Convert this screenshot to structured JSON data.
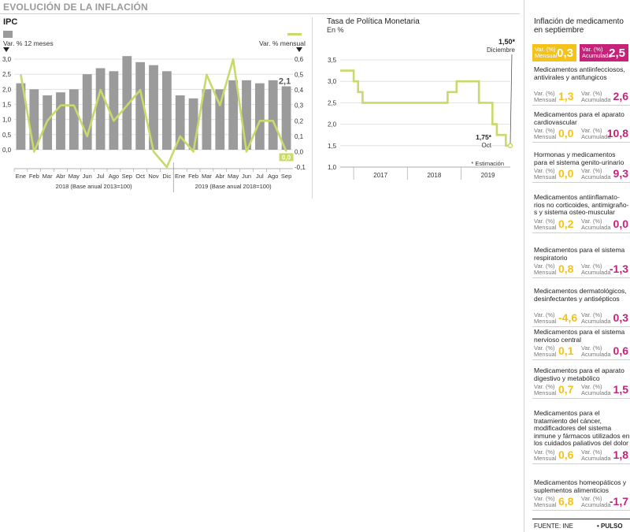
{
  "main_title": "EVOLUCIÓN DE LA INFLACIÓN",
  "ipc": {
    "title": "IPC",
    "legend_bars": "Var. % 12 meses",
    "legend_line": "Var. % mensual",
    "last_bar_label": "2,1",
    "last_line_label": "0,0",
    "period1": "2018 (Base anual 2013=100)",
    "period2": "2019 (Base anual 2018=100)"
  },
  "tpm": {
    "title": "Tasa de Política Monetaria",
    "subtitle": "En %",
    "ann_top_value": "1,50*",
    "ann_top_label": "Diciembre",
    "ann_bot_value": "1,75*",
    "ann_bot_label": "Oct",
    "footnote": "* Estimación"
  },
  "chart_data": [
    {
      "type": "bar",
      "title": "IPC",
      "categories": [
        "Ene",
        "Feb",
        "Mar",
        "Abr",
        "May",
        "Jun",
        "Jul",
        "Ago",
        "Sep",
        "Oct",
        "Nov",
        "Dic",
        "Ene",
        "Feb",
        "Mar",
        "Abr",
        "May",
        "Jun",
        "Jul",
        "Ago",
        "Sep"
      ],
      "series": [
        {
          "name": "Var. % 12 meses",
          "axis": "left",
          "color": "#9b9b9b",
          "values": [
            2.2,
            2.0,
            1.8,
            1.9,
            2.0,
            2.5,
            2.7,
            2.6,
            3.1,
            2.9,
            2.8,
            2.6,
            1.8,
            1.7,
            2.0,
            2.0,
            2.3,
            2.3,
            2.2,
            2.3,
            2.1
          ]
        },
        {
          "name": "Var. % mensual",
          "axis": "right",
          "type": "line",
          "color": "#c9d96a",
          "values": [
            0.5,
            0.0,
            0.2,
            0.3,
            0.3,
            0.1,
            0.4,
            0.2,
            0.3,
            0.4,
            0.0,
            -0.1,
            0.1,
            0.0,
            0.5,
            0.3,
            0.6,
            0.0,
            0.2,
            0.2,
            0.0
          ]
        }
      ],
      "y_left": {
        "ticks": [
          "3,0",
          "2,5",
          "2,0",
          "1,5",
          "1,0",
          "0,5",
          "0,0"
        ],
        "ylim": [
          0,
          3.0
        ]
      },
      "y_right": {
        "ticks": [
          "0,6",
          "0,5",
          "0,4",
          "0,3",
          "0,2",
          "0,1",
          "0,0",
          "-0,1"
        ],
        "ylim": [
          -0.1,
          0.6
        ]
      },
      "grid": true
    },
    {
      "type": "line",
      "title": "Tasa de Política Monetaria",
      "ylabel": "En %",
      "y_ticks": [
        "3,5",
        "3,0",
        "2,5",
        "2,0",
        "1,5",
        "1,0"
      ],
      "ylim": [
        1.0,
        3.5
      ],
      "x_ticks": [
        "2017",
        "2018",
        "2019"
      ],
      "step": true,
      "color": "#c9d96a",
      "points": [
        [
          "2016-10",
          3.25
        ],
        [
          "2017-01",
          3.25
        ],
        [
          "2017-01",
          3.0
        ],
        [
          "2017-02",
          3.0
        ],
        [
          "2017-02",
          2.75
        ],
        [
          "2017-03",
          2.75
        ],
        [
          "2017-03",
          2.5
        ],
        [
          "2018-10",
          2.5
        ],
        [
          "2018-10",
          2.75
        ],
        [
          "2018-12",
          2.75
        ],
        [
          "2018-12",
          3.0
        ],
        [
          "2019-05",
          3.0
        ],
        [
          "2019-05",
          2.5
        ],
        [
          "2019-08",
          2.5
        ],
        [
          "2019-08",
          2.0
        ],
        [
          "2019-09",
          2.0
        ],
        [
          "2019-09",
          1.75
        ],
        [
          "2019-11",
          1.75
        ],
        [
          "2019-11",
          1.5
        ],
        [
          "2019-12",
          1.5
        ]
      ],
      "grid": true
    }
  ],
  "right": {
    "title": "Inflación de medicamento en septiembre",
    "box_mensual_label": "Var. (%) Mensual",
    "box_mensual_value": "0,3",
    "box_acumulada_label": "Var. (%) Acumulada",
    "box_acumulada_value": "2,5",
    "sub_mensual": "Var. (%) Mensual",
    "sub_acumulada": "Var. (%) Acumulada",
    "items": [
      {
        "name": "Medicamentos antiinfecciosos, antivirales y antifungicos",
        "mensual": "1,3",
        "acumulada": "2,6"
      },
      {
        "name": "Medicamentos para el aparato cardiovascular",
        "mensual": "0,0",
        "acumulada": "10,8"
      },
      {
        "name": "Hormonas y medicamentos para el sistema genito-urinario",
        "mensual": "0,0",
        "acumulada": "9,3"
      },
      {
        "name": "Medicamentos antiinflamato-rios no corticoides, antimigraño-s y sistema osteo-muscular",
        "mensual": "0,2",
        "acumulada": "0,0"
      },
      {
        "name": "Medicamentos para el sistema respiratorio",
        "mensual": "0,8",
        "acumulada": "-1,3"
      },
      {
        "name": "Medicamentos dermatológicos, desinfectantes y antisépticos",
        "mensual": "-4,6",
        "acumulada": "0,3"
      },
      {
        "name": "Medicamentos para el sistema nervioso central",
        "mensual": "0,1",
        "acumulada": "0,6"
      },
      {
        "name": "Medicamentos para el aparato digestivo y metabólico",
        "mensual": "0,7",
        "acumulada": "1,5"
      },
      {
        "name": "Medicamentos para el tratamiento del cáncer, modificadores del sistema inmune y fármacos utilizados en los cuidados paliativos del dolor",
        "mensual": "0,6",
        "acumulada": "1,8"
      },
      {
        "name": "Medicamentos homeopáticos y suplementos alimenticios",
        "mensual": "6,8",
        "acumulada": "-1,7"
      }
    ]
  },
  "footer": {
    "source": "FUENTE: INE",
    "brand": "• PULSO"
  },
  "colors": {
    "bars": "#9b9b9b",
    "line": "#c9d96a",
    "mensual": "#f4c21a",
    "acumulada": "#c7227a"
  }
}
